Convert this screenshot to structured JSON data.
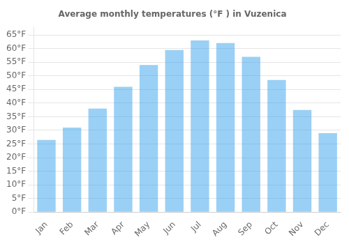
{
  "chart_data": {
    "type": "bar",
    "title": "Average monthly temperatures (°F ) in Vuzenica",
    "categories": [
      "Jan",
      "Feb",
      "Mar",
      "Apr",
      "May",
      "Jun",
      "Jul",
      "Aug",
      "Sep",
      "Oct",
      "Nov",
      "Dec"
    ],
    "values": [
      26.5,
      31.0,
      38.0,
      46.0,
      54.0,
      59.5,
      63.0,
      62.0,
      57.0,
      48.5,
      37.5,
      29.0
    ],
    "ylim": [
      0,
      68
    ],
    "yticks": [
      {
        "value": 0,
        "label": "0°F"
      },
      {
        "value": 5,
        "label": "5°F"
      },
      {
        "value": 10,
        "label": "10°F"
      },
      {
        "value": 15,
        "label": "15°F"
      },
      {
        "value": 20,
        "label": "20°F"
      },
      {
        "value": 25,
        "label": "25°F"
      },
      {
        "value": 30,
        "label": "30°F"
      },
      {
        "value": 35,
        "label": "35°F"
      },
      {
        "value": 40,
        "label": "40°F"
      },
      {
        "value": 45,
        "label": "45°F"
      },
      {
        "value": 50,
        "label": "50°F"
      },
      {
        "value": 55,
        "label": "55°F"
      },
      {
        "value": 60,
        "label": "60°F"
      },
      {
        "value": 65,
        "label": "65°F"
      }
    ],
    "grid": "y"
  }
}
